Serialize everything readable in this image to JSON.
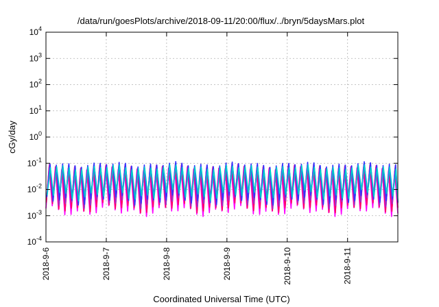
{
  "chart_data": {
    "type": "line",
    "title": "/data/run/goesPlots/archive/2018-09-11/20:00/flux/../bryn/5daysMars.plot",
    "xlabel": "Coordinated Universal Time (UTC)",
    "ylabel": "cGy/day",
    "y_scale": "log",
    "ylim": [
      0.0001,
      10000
    ],
    "xlim": [
      "2018-09-06 00:00",
      "2018-09-11 20:00"
    ],
    "grid": true,
    "x_ticks": [
      "2018-9-6",
      "2018-9-7",
      "2018-9-8",
      "2018-9-9",
      "2018-9-10",
      "2018-9-11"
    ],
    "y_ticks": [
      {
        "base": "10",
        "exp": "-4"
      },
      {
        "base": "10",
        "exp": "-3"
      },
      {
        "base": "10",
        "exp": "-2"
      },
      {
        "base": "10",
        "exp": "-1"
      },
      {
        "base": "10",
        "exp": "0"
      },
      {
        "base": "10",
        "exp": "1"
      },
      {
        "base": "10",
        "exp": "2"
      },
      {
        "base": "10",
        "exp": "3"
      },
      {
        "base": "10",
        "exp": "4"
      }
    ],
    "series": [
      {
        "color": "#ff00ff",
        "values_min": 0.0015,
        "values_max": 0.06
      },
      {
        "color": "#ff0066",
        "values_min": 0.002,
        "values_max": 0.07
      },
      {
        "color": "#9933cc",
        "values_min": 0.003,
        "values_max": 0.08
      },
      {
        "color": "#3333ff",
        "values_min": 0.004,
        "values_max": 0.09
      },
      {
        "color": "#00cccc",
        "values_min": 0.006,
        "values_max": 0.07
      }
    ]
  }
}
